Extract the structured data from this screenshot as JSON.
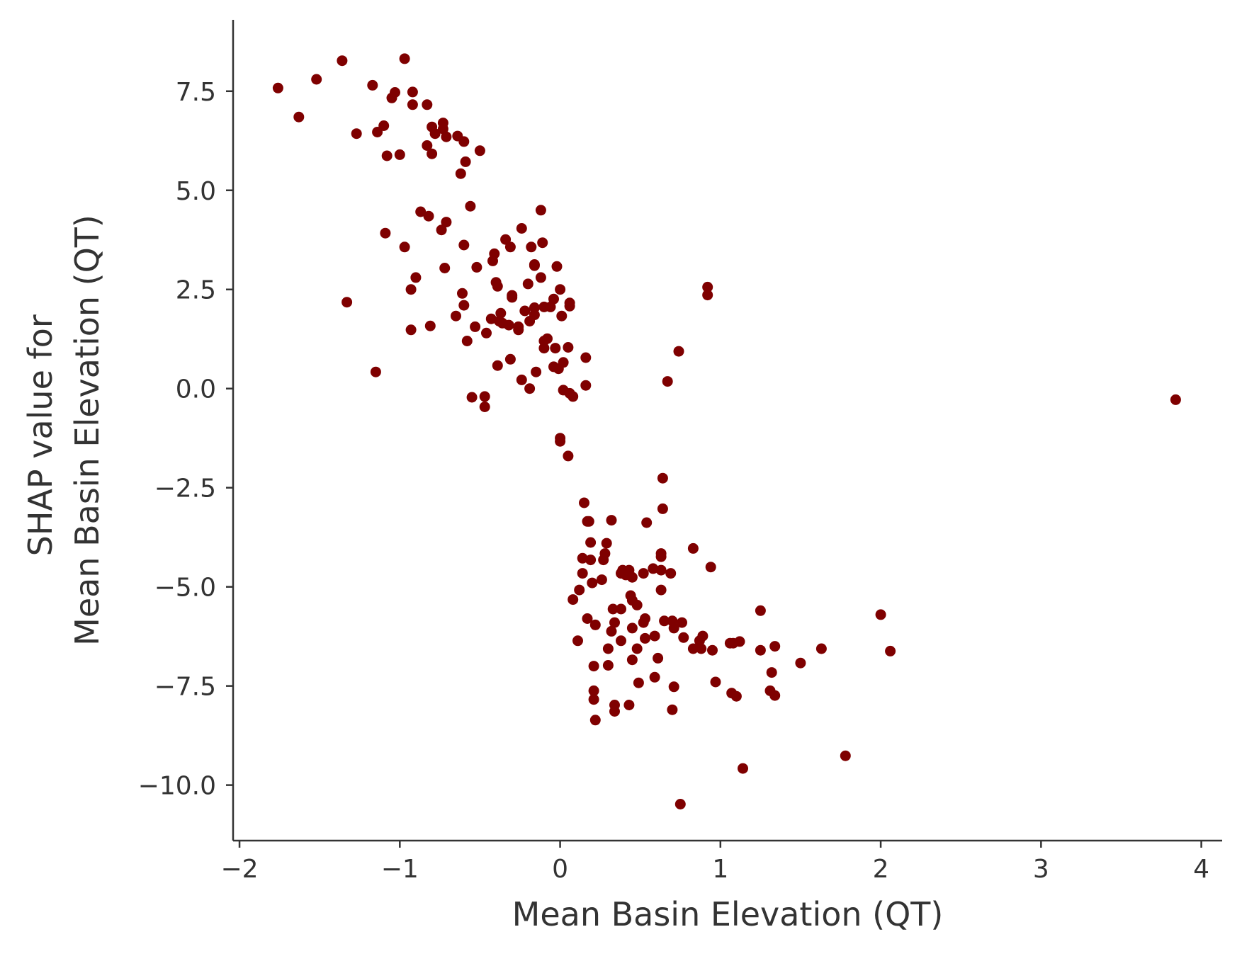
{
  "chart_data": {
    "type": "scatter",
    "xlabel": "Mean Basin Elevation (QT)",
    "ylabel_lines": [
      "SHAP value for",
      "Mean Basin Elevation (QT)"
    ],
    "xlim": [
      -2.04,
      4.13
    ],
    "ylim": [
      -11.4,
      9.3
    ],
    "xticks": [
      -2,
      -1,
      0,
      1,
      2,
      3,
      4
    ],
    "xtick_labels": [
      "−2",
      "−1",
      "0",
      "1",
      "2",
      "3",
      "4"
    ],
    "yticks": [
      -10,
      -7.5,
      -5,
      -2.5,
      0,
      2.5,
      5,
      7.5
    ],
    "ytick_labels": [
      "−10.0",
      "−7.5",
      "−5.0",
      "−2.5",
      "0.0",
      "2.5",
      "5.0",
      "7.5"
    ],
    "grid": false,
    "legend": "none",
    "marker_color": "#7f0000",
    "axis_color": "#333333",
    "series": [
      {
        "points": [
          [
            -1.76,
            7.58
          ],
          [
            -1.63,
            6.85
          ],
          [
            -1.52,
            7.8
          ],
          [
            -1.36,
            8.27
          ],
          [
            -1.27,
            6.43
          ],
          [
            -1.17,
            7.65
          ],
          [
            -1.14,
            6.47
          ],
          [
            -1.1,
            6.63
          ],
          [
            -1.08,
            5.87
          ],
          [
            -1.05,
            7.33
          ],
          [
            -1.03,
            7.47
          ],
          [
            -1.0,
            5.9
          ],
          [
            -0.97,
            8.32
          ],
          [
            -0.92,
            7.48
          ],
          [
            -0.92,
            7.16
          ],
          [
            -0.83,
            7.16
          ],
          [
            -0.8,
            6.6
          ],
          [
            -0.78,
            6.43
          ],
          [
            -0.83,
            6.13
          ],
          [
            -0.8,
            5.92
          ],
          [
            -0.73,
            6.7
          ],
          [
            -0.73,
            6.55
          ],
          [
            -0.71,
            6.35
          ],
          [
            -0.64,
            6.37
          ],
          [
            -0.6,
            6.23
          ],
          [
            -0.5,
            6.0
          ],
          [
            -0.59,
            5.72
          ],
          [
            -0.62,
            5.42
          ],
          [
            -0.56,
            4.6
          ],
          [
            -0.87,
            4.46
          ],
          [
            -0.82,
            4.35
          ],
          [
            -0.71,
            4.2
          ],
          [
            -0.74,
            4.0
          ],
          [
            -1.09,
            3.92
          ],
          [
            -0.97,
            3.57
          ],
          [
            -0.6,
            3.62
          ],
          [
            -0.34,
            3.76
          ],
          [
            -0.24,
            4.04
          ],
          [
            -0.12,
            4.5
          ],
          [
            -0.31,
            3.57
          ],
          [
            -0.18,
            3.57
          ],
          [
            -0.11,
            3.68
          ],
          [
            -0.41,
            3.4
          ],
          [
            -0.42,
            3.22
          ],
          [
            -0.52,
            3.06
          ],
          [
            -0.72,
            3.04
          ],
          [
            -0.16,
            3.13
          ],
          [
            -0.16,
            3.1
          ],
          [
            -0.02,
            3.08
          ],
          [
            -0.9,
            2.8
          ],
          [
            -0.4,
            2.68
          ],
          [
            -0.39,
            2.58
          ],
          [
            -0.12,
            2.8
          ],
          [
            -0.2,
            2.64
          ],
          [
            0.0,
            2.5
          ],
          [
            -0.93,
            2.5
          ],
          [
            -0.61,
            2.4
          ],
          [
            -0.3,
            2.35
          ],
          [
            -0.3,
            2.3
          ],
          [
            -0.04,
            2.26
          ],
          [
            0.06,
            2.16
          ],
          [
            0.06,
            2.08
          ],
          [
            -0.6,
            2.1
          ],
          [
            -0.16,
            2.04
          ],
          [
            -0.1,
            2.06
          ],
          [
            -0.06,
            2.06
          ],
          [
            -1.33,
            2.18
          ],
          [
            -0.37,
            1.9
          ],
          [
            -0.43,
            1.76
          ],
          [
            -0.38,
            1.7
          ],
          [
            -0.65,
            1.83
          ],
          [
            -0.16,
            1.86
          ],
          [
            -0.22,
            1.96
          ],
          [
            -0.36,
            1.65
          ],
          [
            -0.32,
            1.6
          ],
          [
            -0.26,
            1.56
          ],
          [
            -0.26,
            1.48
          ],
          [
            -0.53,
            1.56
          ],
          [
            -0.46,
            1.4
          ],
          [
            -0.19,
            1.7
          ],
          [
            0.01,
            1.83
          ],
          [
            -0.81,
            1.58
          ],
          [
            -0.93,
            1.48
          ],
          [
            -0.58,
            1.2
          ],
          [
            -0.1,
            1.2
          ],
          [
            -0.08,
            1.26
          ],
          [
            -0.1,
            1.02
          ],
          [
            -0.03,
            1.02
          ],
          [
            0.05,
            1.04
          ],
          [
            -0.31,
            0.74
          ],
          [
            0.16,
            0.78
          ],
          [
            -0.39,
            0.58
          ],
          [
            -0.15,
            0.42
          ],
          [
            -0.04,
            0.55
          ],
          [
            -0.01,
            0.5
          ],
          [
            0.02,
            0.66
          ],
          [
            -1.15,
            0.42
          ],
          [
            -0.24,
            0.22
          ],
          [
            -0.19,
            0.0
          ],
          [
            0.16,
            0.08
          ],
          [
            0.02,
            -0.04
          ],
          [
            0.06,
            -0.12
          ],
          [
            0.08,
            -0.2
          ],
          [
            -0.55,
            -0.22
          ],
          [
            -0.47,
            -0.2
          ],
          [
            -0.47,
            -0.46
          ],
          [
            0.0,
            -1.25
          ],
          [
            0.0,
            -1.33
          ],
          [
            0.05,
            -1.7
          ],
          [
            0.74,
            0.94
          ],
          [
            0.67,
            0.18
          ],
          [
            0.92,
            2.56
          ],
          [
            0.92,
            2.36
          ],
          [
            3.84,
            -0.28
          ],
          [
            0.64,
            -2.26
          ],
          [
            0.64,
            -3.03
          ],
          [
            0.15,
            -2.88
          ],
          [
            0.17,
            -3.35
          ],
          [
            0.18,
            -3.35
          ],
          [
            0.32,
            -3.32
          ],
          [
            0.54,
            -3.38
          ],
          [
            0.19,
            -3.88
          ],
          [
            0.29,
            -3.9
          ],
          [
            0.28,
            -4.16
          ],
          [
            0.14,
            -4.28
          ],
          [
            0.19,
            -4.32
          ],
          [
            0.27,
            -4.32
          ],
          [
            0.63,
            -4.16
          ],
          [
            0.63,
            -4.24
          ],
          [
            0.83,
            -4.03
          ],
          [
            0.94,
            -4.5
          ],
          [
            0.39,
            -4.58
          ],
          [
            0.43,
            -4.58
          ],
          [
            0.58,
            -4.54
          ],
          [
            0.63,
            -4.58
          ],
          [
            0.38,
            -4.66
          ],
          [
            0.41,
            -4.7
          ],
          [
            0.45,
            -4.76
          ],
          [
            0.52,
            -4.66
          ],
          [
            0.69,
            -4.66
          ],
          [
            0.14,
            -4.66
          ],
          [
            0.2,
            -4.9
          ],
          [
            0.26,
            -4.82
          ],
          [
            0.12,
            -5.08
          ],
          [
            0.63,
            -5.08
          ],
          [
            0.44,
            -5.22
          ],
          [
            0.45,
            -5.34
          ],
          [
            0.48,
            -5.46
          ],
          [
            0.08,
            -5.32
          ],
          [
            0.33,
            -5.56
          ],
          [
            0.38,
            -5.56
          ],
          [
            0.17,
            -5.8
          ],
          [
            0.53,
            -5.8
          ],
          [
            0.65,
            -5.86
          ],
          [
            0.7,
            -5.86
          ],
          [
            0.76,
            -5.9
          ],
          [
            0.22,
            -5.96
          ],
          [
            0.34,
            -5.9
          ],
          [
            0.52,
            -5.9
          ],
          [
            0.45,
            -6.04
          ],
          [
            0.32,
            -6.12
          ],
          [
            0.59,
            -6.24
          ],
          [
            0.71,
            -6.04
          ],
          [
            0.77,
            -6.28
          ],
          [
            0.89,
            -6.24
          ],
          [
            0.87,
            -6.36
          ],
          [
            0.11,
            -6.36
          ],
          [
            0.38,
            -6.36
          ],
          [
            0.53,
            -6.3
          ],
          [
            1.06,
            -6.42
          ],
          [
            1.08,
            -6.42
          ],
          [
            1.12,
            -6.38
          ],
          [
            1.34,
            -6.5
          ],
          [
            0.3,
            -6.56
          ],
          [
            0.48,
            -6.56
          ],
          [
            0.83,
            -6.56
          ],
          [
            0.88,
            -6.56
          ],
          [
            0.95,
            -6.6
          ],
          [
            1.25,
            -6.6
          ],
          [
            1.63,
            -6.56
          ],
          [
            2.06,
            -6.62
          ],
          [
            0.45,
            -6.84
          ],
          [
            0.61,
            -6.8
          ],
          [
            1.5,
            -6.92
          ],
          [
            0.21,
            -7.0
          ],
          [
            0.3,
            -6.98
          ],
          [
            1.32,
            -7.16
          ],
          [
            0.59,
            -7.28
          ],
          [
            0.49,
            -7.42
          ],
          [
            0.97,
            -7.4
          ],
          [
            0.71,
            -7.52
          ],
          [
            0.21,
            -7.62
          ],
          [
            1.07,
            -7.68
          ],
          [
            1.1,
            -7.76
          ],
          [
            1.31,
            -7.62
          ],
          [
            1.34,
            -7.74
          ],
          [
            1.25,
            -5.6
          ],
          [
            2.0,
            -5.7
          ],
          [
            0.21,
            -7.84
          ],
          [
            0.34,
            -7.98
          ],
          [
            0.43,
            -7.98
          ],
          [
            0.34,
            -8.14
          ],
          [
            0.7,
            -8.1
          ],
          [
            0.22,
            -8.36
          ],
          [
            1.78,
            -9.26
          ],
          [
            1.14,
            -9.58
          ],
          [
            0.75,
            -10.48
          ]
        ]
      }
    ]
  }
}
